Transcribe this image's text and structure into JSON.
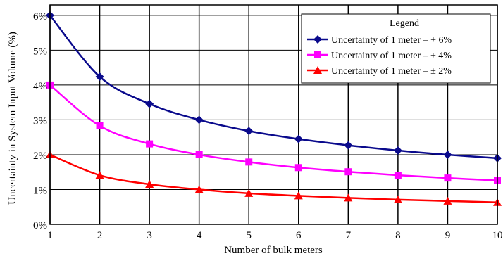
{
  "chart_data": {
    "type": "line",
    "xlabel": "Number of bulk meters",
    "ylabel": "Uncertainty in System Input Volume (%)",
    "x": [
      1,
      2,
      3,
      4,
      5,
      6,
      7,
      8,
      9,
      10
    ],
    "xlim": [
      1,
      10
    ],
    "ylim": [
      0,
      6.3
    ],
    "x_ticks": [
      "1",
      "2",
      "3",
      "4",
      "5",
      "6",
      "7",
      "8",
      "9",
      "10"
    ],
    "y_ticks": [
      {
        "value": 0,
        "label": "0%"
      },
      {
        "value": 1,
        "label": "1%"
      },
      {
        "value": 2,
        "label": "2%"
      },
      {
        "value": 3,
        "label": "3%"
      },
      {
        "value": 4,
        "label": "4%"
      },
      {
        "value": 5,
        "label": "5%"
      },
      {
        "value": 6,
        "label": "6%"
      }
    ],
    "grid": true,
    "legend": {
      "title": "Legend",
      "position": "top-right"
    },
    "series": [
      {
        "name": "Uncertainty of 1 meter – + 6%",
        "color": "#0a0a8c",
        "marker": "diamond",
        "values": [
          6.0,
          4.24,
          3.46,
          3.0,
          2.68,
          2.45,
          2.27,
          2.12,
          2.0,
          1.9
        ]
      },
      {
        "name": "Uncertainty of 1 meter – ± 4%",
        "color": "#ff00ff",
        "marker": "square",
        "values": [
          4.0,
          2.83,
          2.31,
          2.0,
          1.79,
          1.63,
          1.51,
          1.41,
          1.33,
          1.26
        ]
      },
      {
        "name": "Uncertainty of 1 meter – ± 2%",
        "color": "#ff0000",
        "marker": "triangle",
        "values": [
          2.0,
          1.41,
          1.15,
          1.0,
          0.89,
          0.82,
          0.76,
          0.71,
          0.67,
          0.63
        ]
      }
    ]
  }
}
